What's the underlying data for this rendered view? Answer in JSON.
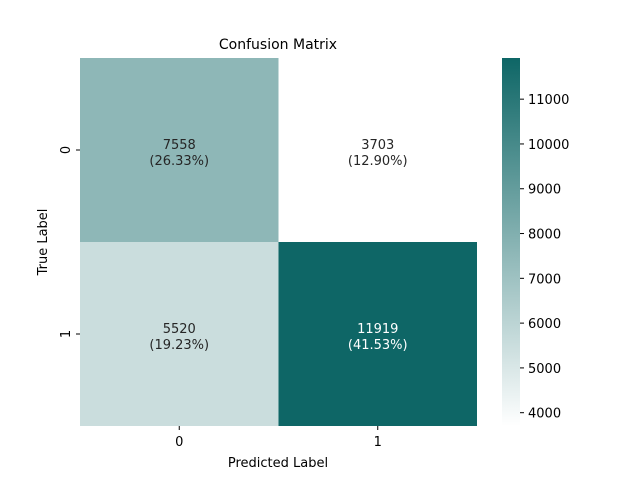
{
  "chart_data": {
    "type": "heatmap",
    "title": "Confusion Matrix",
    "xlabel": "Predicted Label",
    "ylabel": "True Label",
    "x_categories": [
      "0",
      "1"
    ],
    "y_categories": [
      "0",
      "1"
    ],
    "values": [
      [
        7558,
        3703
      ],
      [
        5520,
        11919
      ]
    ],
    "annotations": [
      [
        "7558\n(26.33%)",
        "3703\n(12.90%)"
      ],
      [
        "5520\n(19.23%)",
        "11919\n(41.53%)"
      ]
    ],
    "colorbar": {
      "min": 3703,
      "max": 11919,
      "ticks": [
        4000,
        5000,
        6000,
        7000,
        8000,
        9000,
        10000,
        11000
      ],
      "colors": [
        "#ffffff",
        "#0e6666"
      ]
    }
  }
}
